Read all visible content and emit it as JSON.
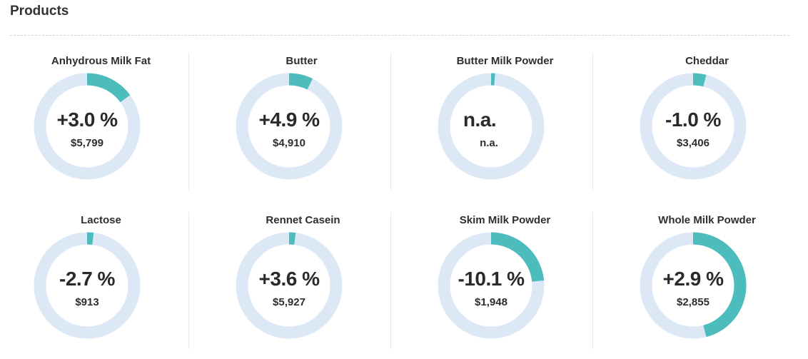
{
  "section": {
    "title": "Products"
  },
  "colors": {
    "ring_track": "#dce8f6",
    "ring_fill": "#4dbcbd"
  },
  "products": [
    {
      "name": "Anhydrous Milk Fat",
      "change": "+3.0 %",
      "price": "$5,799",
      "share": 0.15
    },
    {
      "name": "Butter",
      "change": "+4.9 %",
      "price": "$4,910",
      "share": 0.073
    },
    {
      "name": "Butter Milk Powder",
      "change": "n.a.",
      "price": "n.a.",
      "share": 0.012
    },
    {
      "name": "Cheddar",
      "change": "-1.0 %",
      "price": "$3,406",
      "share": 0.04
    },
    {
      "name": "Lactose",
      "change": "-2.7 %",
      "price": "$913",
      "share": 0.02
    },
    {
      "name": "Rennet Casein",
      "change": "+3.6 %",
      "price": "$5,927",
      "share": 0.02
    },
    {
      "name": "Skim Milk Powder",
      "change": "-10.1 %",
      "price": "$1,948",
      "share": 0.235
    },
    {
      "name": "Whole Milk Powder",
      "change": "+2.9 %",
      "price": "$2,855",
      "share": 0.46
    }
  ]
}
